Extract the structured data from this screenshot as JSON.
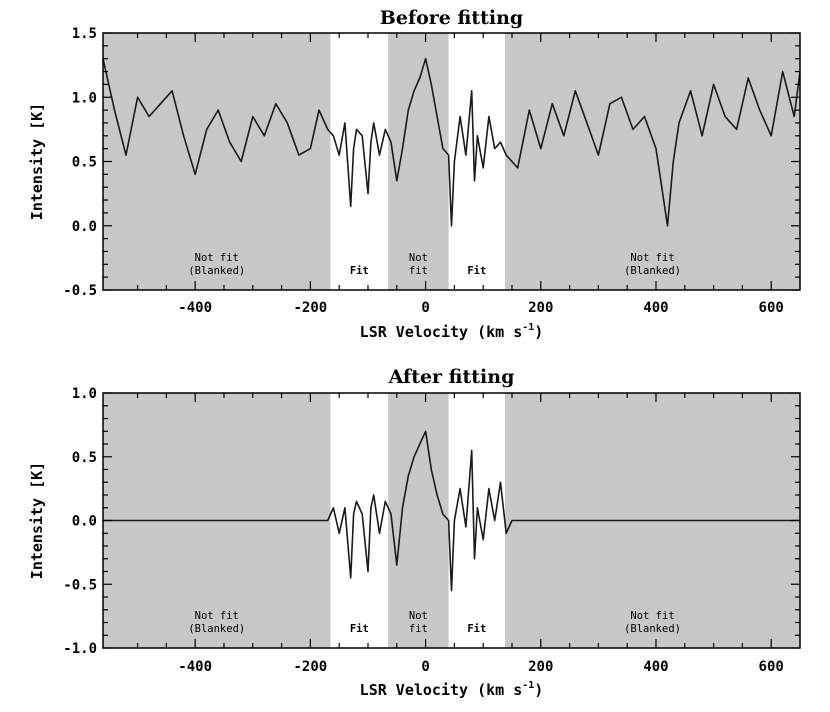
{
  "chart_data": [
    {
      "type": "line",
      "title": "Before fitting",
      "xlabel": "LSR Velocity (km s",
      "xlabel_sup": "-1",
      "xlabel_close": ")",
      "ylabel": "Intensity [K]",
      "xlim": [
        -560,
        650
      ],
      "ylim": [
        -0.5,
        1.5
      ],
      "xticks": [
        -400,
        -200,
        0,
        200,
        400,
        600
      ],
      "yticks": [
        -0.5,
        0.0,
        0.5,
        1.0,
        1.5
      ],
      "ytick_labels": [
        "-0.5",
        "0.0",
        "0.5",
        "1.0",
        "1.5"
      ],
      "xtick_labels": [
        "-400",
        "-200",
        "0",
        "200",
        "400",
        "600"
      ],
      "regions": [
        {
          "x0": -560,
          "x1": -165,
          "shaded": true,
          "label": [
            "Not fit",
            "(Blanked)"
          ]
        },
        {
          "x0": -165,
          "x1": -65,
          "shaded": false,
          "label": [
            "Fit"
          ]
        },
        {
          "x0": -65,
          "x1": 40,
          "shaded": true,
          "label": [
            "Not",
            "fit"
          ]
        },
        {
          "x0": 40,
          "x1": 138,
          "shaded": false,
          "label": [
            "Fit"
          ]
        },
        {
          "x0": 138,
          "x1": 650,
          "shaded": true,
          "label": [
            "Not fit",
            "(Blanked)"
          ]
        }
      ],
      "series": [
        {
          "x": [
            -560,
            -540,
            -520,
            -500,
            -480,
            -460,
            -440,
            -420,
            -400,
            -380,
            -360,
            -340,
            -320,
            -300,
            -280,
            -260,
            -240,
            -220,
            -200,
            -185,
            -170,
            -160,
            -150,
            -140,
            -130,
            -125,
            -120,
            -110,
            -100,
            -95,
            -90,
            -80,
            -70,
            -60,
            -50,
            -40,
            -30,
            -20,
            -10,
            0,
            10,
            20,
            30,
            40,
            45,
            50,
            60,
            70,
            80,
            85,
            90,
            100,
            110,
            120,
            130,
            140,
            160,
            180,
            200,
            220,
            240,
            260,
            280,
            300,
            320,
            340,
            360,
            380,
            400,
            420,
            430,
            440,
            460,
            480,
            500,
            520,
            540,
            560,
            580,
            600,
            620,
            640,
            650
          ],
          "values": [
            1.3,
            0.9,
            0.55,
            1.0,
            0.85,
            0.95,
            1.05,
            0.7,
            0.4,
            0.75,
            0.9,
            0.65,
            0.5,
            0.85,
            0.7,
            0.95,
            0.8,
            0.55,
            0.6,
            0.9,
            0.75,
            0.7,
            0.55,
            0.8,
            0.15,
            0.6,
            0.75,
            0.7,
            0.25,
            0.65,
            0.8,
            0.55,
            0.75,
            0.65,
            0.35,
            0.6,
            0.9,
            1.05,
            1.15,
            1.3,
            1.1,
            0.85,
            0.6,
            0.55,
            0.0,
            0.5,
            0.85,
            0.55,
            1.05,
            0.35,
            0.7,
            0.45,
            0.85,
            0.6,
            0.65,
            0.55,
            0.45,
            0.9,
            0.6,
            0.95,
            0.7,
            1.05,
            0.8,
            0.55,
            0.95,
            1.0,
            0.75,
            0.85,
            0.6,
            0.0,
            0.5,
            0.8,
            1.05,
            0.7,
            1.1,
            0.85,
            0.75,
            1.15,
            0.9,
            0.7,
            1.2,
            0.85,
            1.2
          ]
        }
      ]
    },
    {
      "type": "line",
      "title": "After fitting",
      "xlabel": "LSR Velocity (km s",
      "xlabel_sup": "-1",
      "xlabel_close": ")",
      "ylabel": "Intensity [K]",
      "xlim": [
        -560,
        650
      ],
      "ylim": [
        -1.0,
        1.0
      ],
      "xticks": [
        -400,
        -200,
        0,
        200,
        400,
        600
      ],
      "yticks": [
        -1.0,
        -0.5,
        0.0,
        0.5,
        1.0
      ],
      "ytick_labels": [
        "-1.0",
        "-0.5",
        "0.0",
        "0.5",
        "1.0"
      ],
      "xtick_labels": [
        "-400",
        "-200",
        "0",
        "200",
        "400",
        "600"
      ],
      "regions": [
        {
          "x0": -560,
          "x1": -165,
          "shaded": true,
          "label": [
            "Not fit",
            "(Blanked)"
          ]
        },
        {
          "x0": -165,
          "x1": -65,
          "shaded": false,
          "label": [
            "Fit"
          ]
        },
        {
          "x0": -65,
          "x1": 40,
          "shaded": true,
          "label": [
            "Not",
            "fit"
          ]
        },
        {
          "x0": 40,
          "x1": 138,
          "shaded": false,
          "label": [
            "Fit"
          ]
        },
        {
          "x0": 138,
          "x1": 650,
          "shaded": true,
          "label": [
            "Not fit",
            "(Blanked)"
          ]
        }
      ],
      "series": [
        {
          "x": [
            -560,
            -170,
            -160,
            -150,
            -140,
            -130,
            -125,
            -120,
            -110,
            -100,
            -95,
            -90,
            -80,
            -70,
            -60,
            -50,
            -40,
            -30,
            -20,
            -10,
            0,
            10,
            20,
            30,
            40,
            45,
            50,
            60,
            70,
            80,
            85,
            90,
            100,
            110,
            120,
            130,
            140,
            150,
            650
          ],
          "values": [
            0.0,
            0.0,
            0.1,
            -0.1,
            0.1,
            -0.45,
            0.05,
            0.15,
            0.05,
            -0.4,
            0.1,
            0.2,
            -0.1,
            0.15,
            0.05,
            -0.35,
            0.1,
            0.35,
            0.5,
            0.6,
            0.7,
            0.4,
            0.2,
            0.05,
            0.0,
            -0.55,
            0.0,
            0.25,
            -0.05,
            0.55,
            -0.3,
            0.1,
            -0.15,
            0.25,
            0.0,
            0.3,
            -0.1,
            0.0,
            0.0
          ]
        }
      ]
    }
  ]
}
